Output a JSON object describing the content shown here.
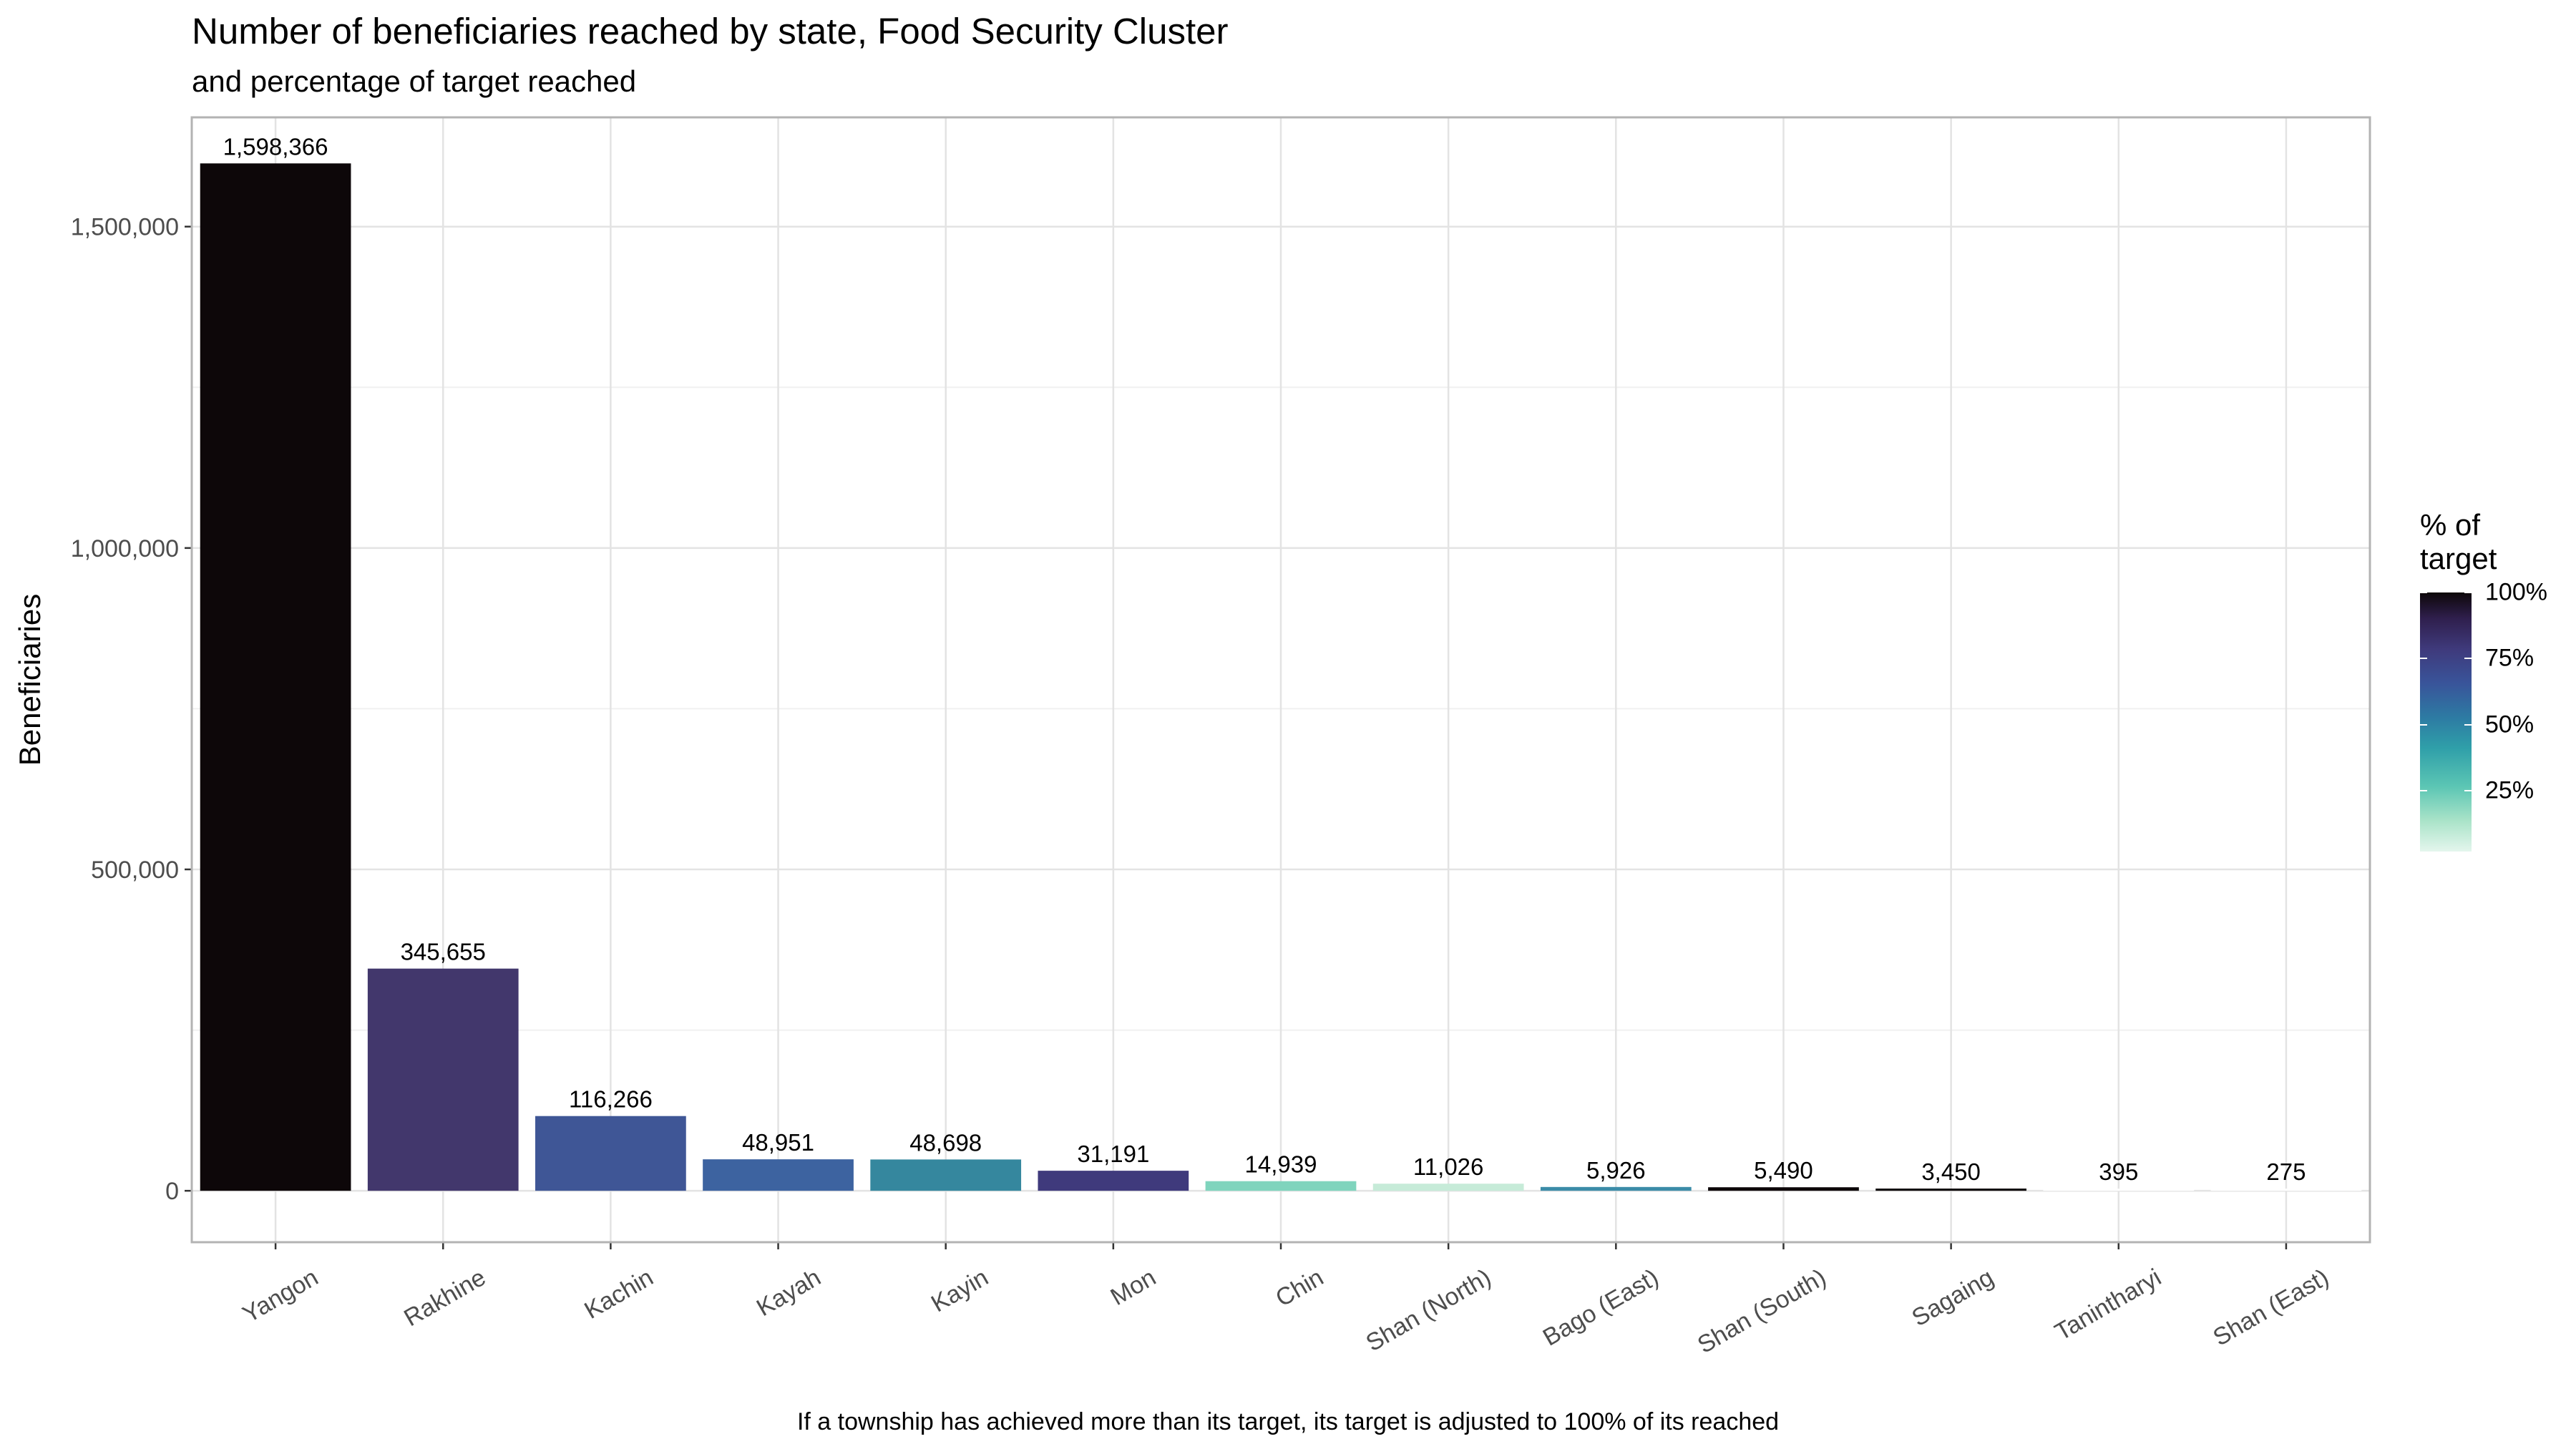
{
  "title": "Number of beneficiaries reached by state, Food Security Cluster",
  "subtitle": "and percentage of target reached",
  "caption": "If a township has achieved more than its target, its target is  adjusted to 100% of its reached",
  "chart_data": {
    "type": "bar",
    "title": "Number of beneficiaries reached by state, Food Security Cluster",
    "subtitle": "and percentage of target reached",
    "xlabel": "",
    "ylabel": "Beneficiaries",
    "ylim": [
      -80000,
      1670000
    ],
    "yticks": [
      0,
      500000,
      1000000,
      1500000
    ],
    "ytick_labels": [
      "0",
      "500,000",
      "1,000,000",
      "1,500,000"
    ],
    "grid": true,
    "categories": [
      "Yangon",
      "Rakhine",
      "Kachin",
      "Kayah",
      "Kayin",
      "Mon",
      "Chin",
      "Shan (North)",
      "Bago (East)",
      "Shan (South)",
      "Sagaing",
      "Tanintharyi",
      "Shan (East)"
    ],
    "values": [
      1598366,
      345655,
      116266,
      48951,
      48698,
      31191,
      14939,
      11026,
      5926,
      5490,
      3450,
      395,
      275
    ],
    "value_labels": [
      "1,598,366",
      "345,655",
      "116,266",
      "48,951",
      "48,698",
      "31,191",
      "14,939",
      "11,026",
      "5,926",
      "5,490",
      "3,450",
      "395",
      "275"
    ],
    "pct_of_target": [
      100,
      85,
      70,
      62,
      50,
      80,
      18,
      8,
      48,
      100,
      100,
      5,
      5
    ],
    "bar_colors": [
      "#0d0709",
      "#42376c",
      "#3f5696",
      "#3d63a0",
      "#35879e",
      "#3f3a7c",
      "#7fd4bd",
      "#c6ebd8",
      "#3c8ca8",
      "#0d0709",
      "#0d0709",
      "#ffffff",
      "#ffffff"
    ],
    "legend": {
      "title_lines": [
        "% of",
        "target"
      ],
      "position": "right",
      "labels": [
        "100%",
        "75%",
        "50%",
        "25%"
      ],
      "values": [
        100,
        75,
        50,
        25
      ],
      "range": [
        2,
        100
      ]
    }
  }
}
